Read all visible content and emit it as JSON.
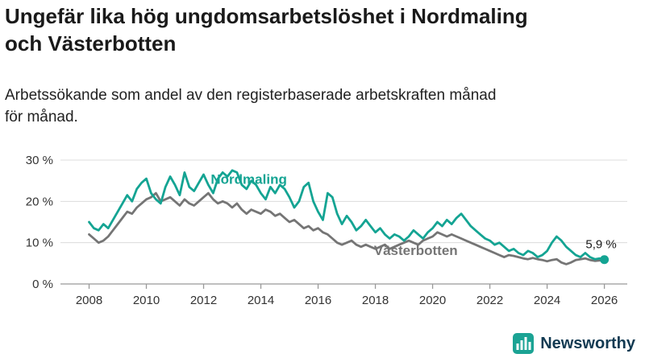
{
  "title": "Ungefär lika hög ungdomsarbetslöshet i Nordmaling\noch Västerbotten",
  "subtitle": "Arbetssökande som andel av den registerbaserade arbetskraften månad\nför månad.",
  "branding": {
    "name": "Newsworthy"
  },
  "colors": {
    "nordmaling": "#14a493",
    "vasterbotten": "#757575",
    "grid": "#dcdcdc",
    "axis": "#999999",
    "tick_text": "#333333",
    "annotation_text": "#1a1a1a",
    "brand_text": "#123a52",
    "logo_bg": "#1ba394"
  },
  "chart_data": {
    "type": "line",
    "title": "Ungefär lika hög ungdomsarbetslöshet i Nordmaling och Västerbotten",
    "subtitle": "Arbetssökande som andel av den registerbaserade arbetskraften månad för månad.",
    "xlabel": "",
    "ylabel": "",
    "ylim": [
      0,
      32
    ],
    "grid": true,
    "x_start": 2008.0,
    "x_step": 0.1666667,
    "y_ticks": [
      {
        "value": 0,
        "label": "0 %"
      },
      {
        "value": 10,
        "label": "10 %"
      },
      {
        "value": 20,
        "label": "20 %"
      },
      {
        "value": 30,
        "label": "30 %"
      }
    ],
    "x_ticks": [
      2008,
      2010,
      2012,
      2014,
      2016,
      2018,
      2020,
      2022,
      2024,
      2026
    ],
    "series": [
      {
        "name": "Nordmaling",
        "color": "#14a493",
        "values": [
          15.0,
          13.5,
          13.0,
          14.5,
          13.5,
          15.5,
          17.5,
          19.5,
          21.5,
          20.0,
          23.0,
          24.5,
          25.5,
          22.0,
          20.5,
          19.5,
          23.5,
          26.0,
          24.0,
          21.5,
          27.0,
          23.5,
          22.5,
          24.5,
          26.5,
          24.0,
          22.0,
          25.5,
          27.0,
          26.0,
          27.5,
          27.0,
          24.0,
          23.0,
          25.0,
          24.0,
          22.0,
          20.5,
          23.5,
          22.0,
          24.0,
          23.0,
          21.0,
          18.5,
          20.0,
          23.5,
          24.5,
          20.0,
          17.5,
          15.5,
          22.0,
          21.0,
          17.0,
          14.5,
          16.5,
          15.0,
          13.0,
          14.0,
          15.5,
          14.0,
          12.5,
          13.5,
          12.0,
          11.0,
          12.0,
          11.5,
          10.5,
          11.5,
          13.0,
          12.0,
          11.0,
          12.5,
          13.5,
          15.0,
          14.0,
          15.5,
          14.5,
          16.0,
          17.0,
          15.5,
          14.0,
          13.0,
          12.0,
          11.0,
          10.5,
          9.5,
          10.0,
          9.0,
          8.0,
          8.5,
          7.5,
          7.0,
          8.0,
          7.5,
          6.5,
          7.0,
          8.0,
          10.0,
          11.5,
          10.5,
          9.0,
          8.0,
          7.0,
          6.5,
          7.5,
          6.5,
          6.0,
          6.2,
          5.9
        ]
      },
      {
        "name": "Västerbotten",
        "color": "#757575",
        "values": [
          12.0,
          11.0,
          10.0,
          10.5,
          11.5,
          13.0,
          14.5,
          16.0,
          17.5,
          17.0,
          18.5,
          19.5,
          20.5,
          21.0,
          22.0,
          20.0,
          20.5,
          21.0,
          20.0,
          19.0,
          20.5,
          19.5,
          19.0,
          20.0,
          21.0,
          22.0,
          20.5,
          19.5,
          20.0,
          19.5,
          18.5,
          19.5,
          18.0,
          17.0,
          18.0,
          17.5,
          17.0,
          18.0,
          17.5,
          16.5,
          17.0,
          16.0,
          15.0,
          15.5,
          14.5,
          13.5,
          14.0,
          13.0,
          13.5,
          12.5,
          12.0,
          11.0,
          10.0,
          9.5,
          10.0,
          10.5,
          9.5,
          9.0,
          9.5,
          9.0,
          8.5,
          9.0,
          9.5,
          8.5,
          9.0,
          9.5,
          10.0,
          10.5,
          10.0,
          9.5,
          10.5,
          11.0,
          11.5,
          12.5,
          12.0,
          11.5,
          12.0,
          11.5,
          11.0,
          10.5,
          10.0,
          9.5,
          9.0,
          8.5,
          8.0,
          7.5,
          7.0,
          6.5,
          7.0,
          6.8,
          6.5,
          6.2,
          6.0,
          6.3,
          6.0,
          5.8,
          5.5,
          5.8,
          6.0,
          5.2,
          4.8,
          5.2,
          5.8,
          6.0,
          6.2,
          5.8,
          5.6,
          5.7,
          5.7
        ]
      }
    ],
    "series_labels": [
      {
        "text": "Nordmaling",
        "x": 2012.25,
        "y": 24.3,
        "color": "#14a493"
      },
      {
        "text": "Västerbotten",
        "x": 2017.95,
        "y": 7.0,
        "color": "#757575"
      }
    ],
    "annotation": {
      "label": "5,9 %",
      "x": 2026.0,
      "y": 5.9
    },
    "legend_position": "inline-labels"
  }
}
